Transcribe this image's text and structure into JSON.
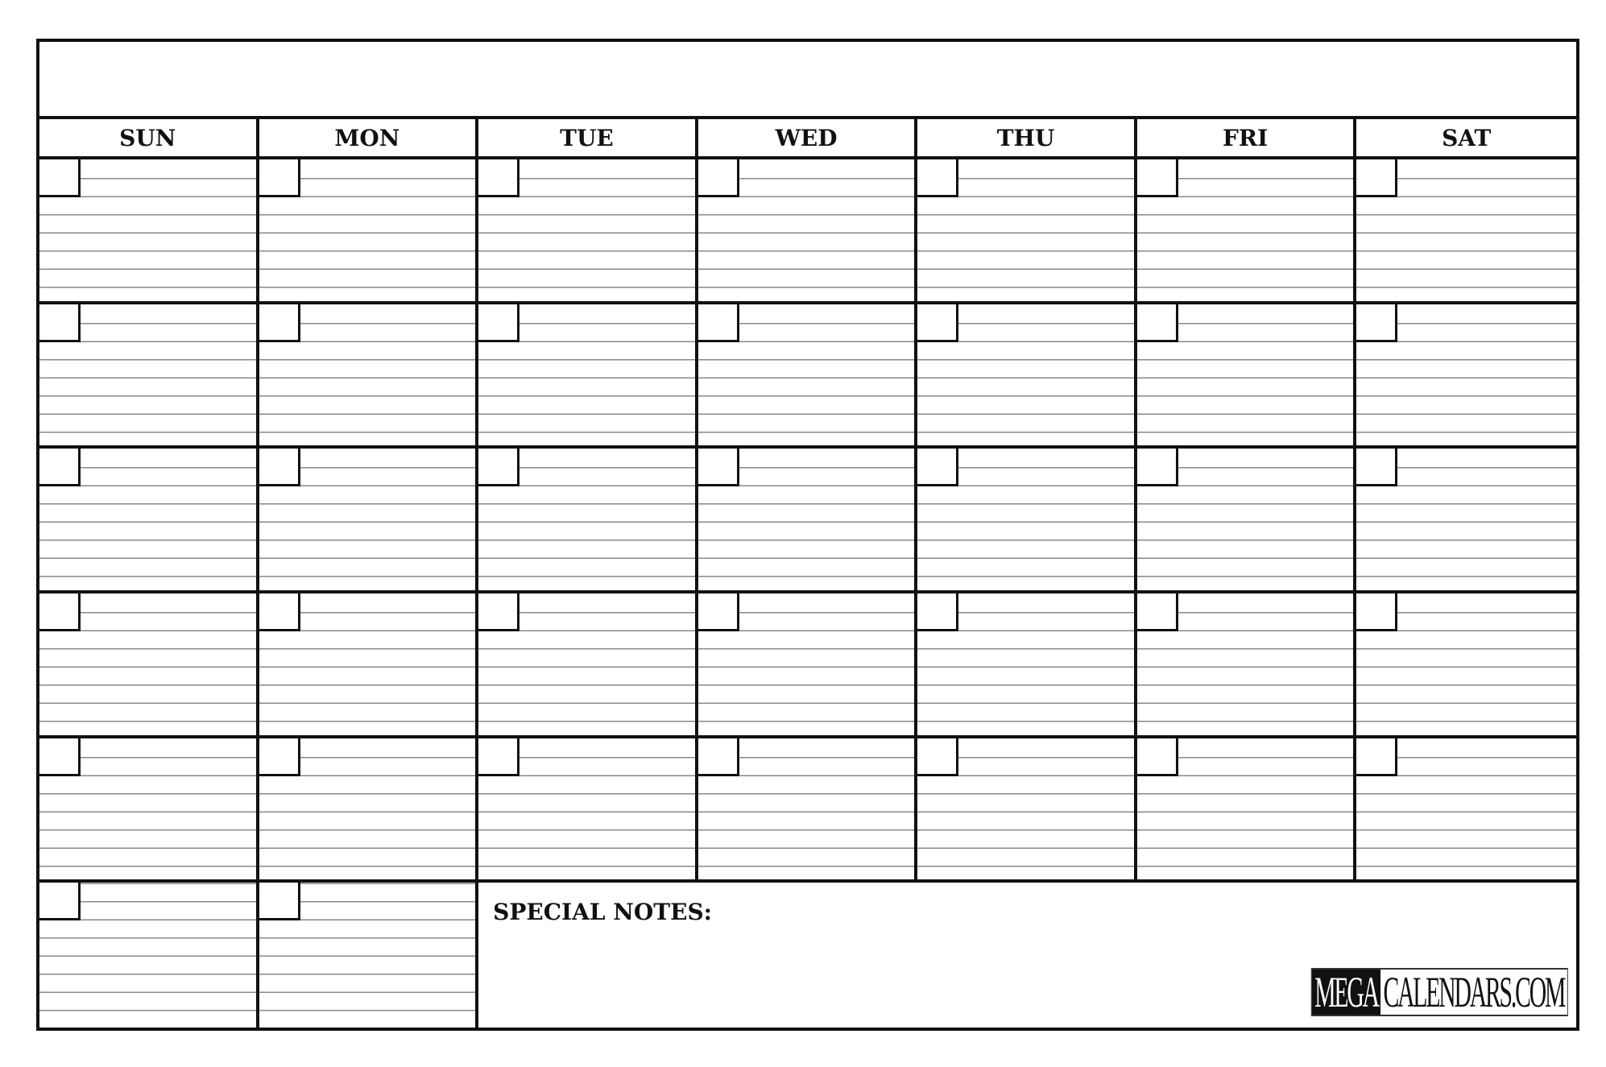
{
  "calendar": {
    "title": "",
    "days": [
      "SUN",
      "MON",
      "TUE",
      "WED",
      "THU",
      "FRI",
      "SAT"
    ],
    "special_notes_label": "SPECIAL NOTES:",
    "logo": {
      "part1": "MEGA",
      "part2": "CALENDARS.COM"
    }
  }
}
